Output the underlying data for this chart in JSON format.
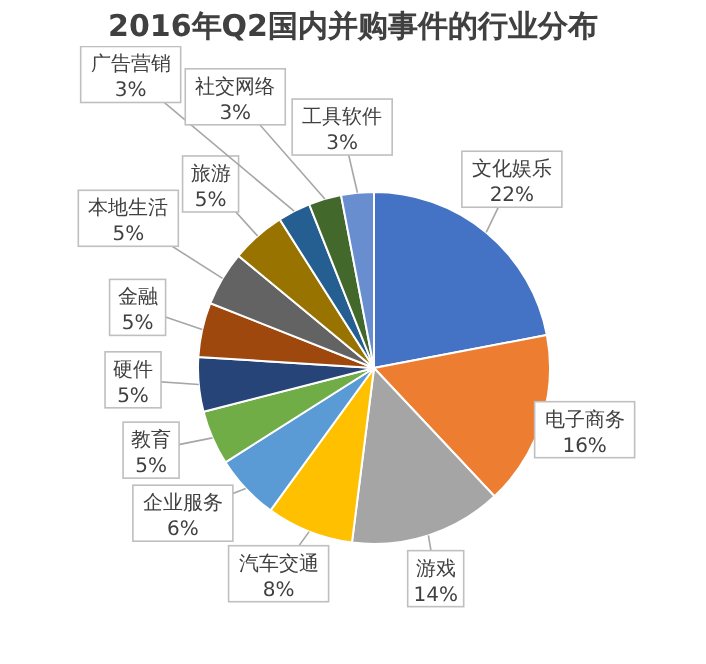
{
  "chart_data": {
    "type": "pie",
    "title": "2016年Q2国内并购事件的行业分布",
    "categories": [
      "文化娱乐",
      "电子商务",
      "游戏",
      "汽车交通",
      "企业服务",
      "教育",
      "硬件",
      "金融",
      "本地生活",
      "旅游",
      "广告营销",
      "社交网络",
      "工具软件"
    ],
    "values": [
      22,
      16,
      14,
      8,
      6,
      5,
      5,
      5,
      5,
      5,
      3,
      3,
      3
    ],
    "value_labels": [
      "22%",
      "16%",
      "14%",
      "8%",
      "6%",
      "5%",
      "5%",
      "5%",
      "5%",
      "5%",
      "3%",
      "3%",
      "3%"
    ],
    "colors": [
      "#4472c4",
      "#ed7d31",
      "#a5a5a5",
      "#ffc000",
      "#5b9bd5",
      "#70ad47",
      "#264478",
      "#9e480e",
      "#636363",
      "#997300",
      "#255e91",
      "#43682b",
      "#698ed0"
    ],
    "legend": false
  }
}
